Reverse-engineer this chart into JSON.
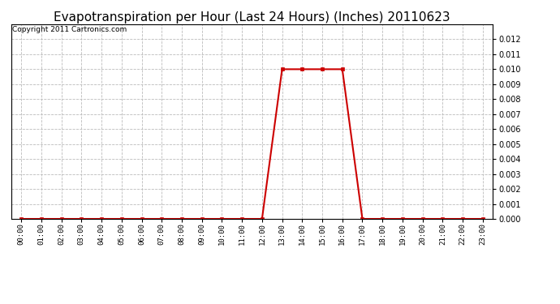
{
  "title": "Evapotranspiration per Hour (Last 24 Hours) (Inches) 20110623",
  "copyright": "Copyright 2011 Cartronics.com",
  "hours": [
    0,
    1,
    2,
    3,
    4,
    5,
    6,
    7,
    8,
    9,
    10,
    11,
    12,
    13,
    14,
    15,
    16,
    17,
    18,
    19,
    20,
    21,
    22,
    23
  ],
  "values": [
    0.0,
    0.0,
    0.0,
    0.0,
    0.0,
    0.0,
    0.0,
    0.0,
    0.0,
    0.0,
    0.0,
    0.0,
    0.0,
    0.01,
    0.01,
    0.01,
    0.01,
    0.0,
    0.0,
    0.0,
    0.0,
    0.0,
    0.0,
    0.0
  ],
  "line_color": "#cc0000",
  "marker": "s",
  "marker_size": 3,
  "ylim": [
    0.0,
    0.013
  ],
  "yticks": [
    0.0,
    0.001,
    0.002,
    0.003,
    0.004,
    0.005,
    0.006,
    0.007,
    0.008,
    0.009,
    0.01,
    0.011,
    0.012
  ],
  "bg_color": "#ffffff",
  "grid_color": "#bbbbbb",
  "title_fontsize": 11,
  "copyright_fontsize": 6.5
}
